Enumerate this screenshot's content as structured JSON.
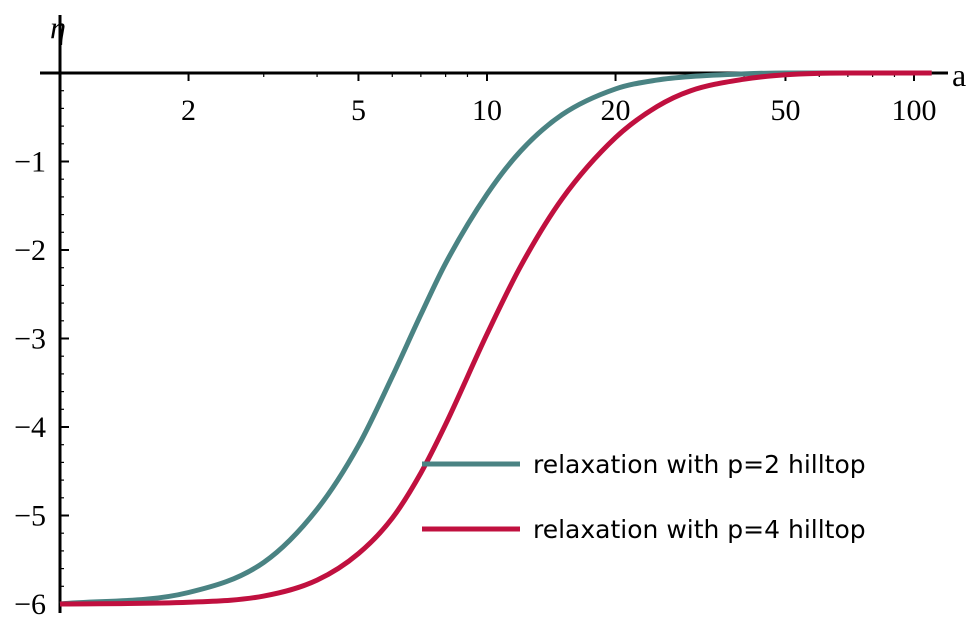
{
  "chart_data": {
    "type": "line",
    "title": "",
    "xlabel": "a",
    "ylabel": "η",
    "xscale": "log",
    "xlim": [
      1,
      110
    ],
    "ylim": [
      -6,
      0
    ],
    "grid": false,
    "legend_position": "bottom-right",
    "x_ticks": [
      2,
      5,
      10,
      20,
      50,
      100
    ],
    "x_tick_labels": [
      "2",
      "5",
      "10",
      "20",
      "50",
      "100"
    ],
    "y_ticks": [
      -1,
      -2,
      -3,
      -4,
      -5,
      -6
    ],
    "y_tick_labels": [
      "−1",
      "−2",
      "−3",
      "−4",
      "−5",
      "−6"
    ],
    "colors": {
      "p2": "#4a8383",
      "p4": "#c0103f"
    },
    "series": [
      {
        "name": "relaxation with p=2 hilltop",
        "color": "#4a8383",
        "x": [
          1,
          2,
          3,
          4,
          5,
          6,
          7,
          8,
          10,
          12,
          15,
          20,
          25,
          30,
          40,
          50,
          70,
          100,
          110
        ],
        "y": [
          -6.0,
          -5.87,
          -5.53,
          -4.93,
          -4.21,
          -3.43,
          -2.73,
          -2.15,
          -1.37,
          -0.88,
          -0.47,
          -0.18,
          -0.08,
          -0.04,
          -0.01,
          0.0,
          0.0,
          0.0,
          0.0
        ]
      },
      {
        "name": "relaxation with p=4 hilltop",
        "color": "#c0103f",
        "x": [
          1,
          2,
          3,
          4,
          5,
          6,
          7,
          8,
          10,
          12,
          15,
          20,
          25,
          30,
          40,
          50,
          70,
          100,
          110
        ],
        "y": [
          -6.0,
          -5.98,
          -5.91,
          -5.73,
          -5.43,
          -5.03,
          -4.52,
          -3.97,
          -2.95,
          -2.18,
          -1.42,
          -0.73,
          -0.38,
          -0.2,
          -0.07,
          -0.02,
          0.0,
          0.0,
          0.0
        ]
      }
    ]
  }
}
